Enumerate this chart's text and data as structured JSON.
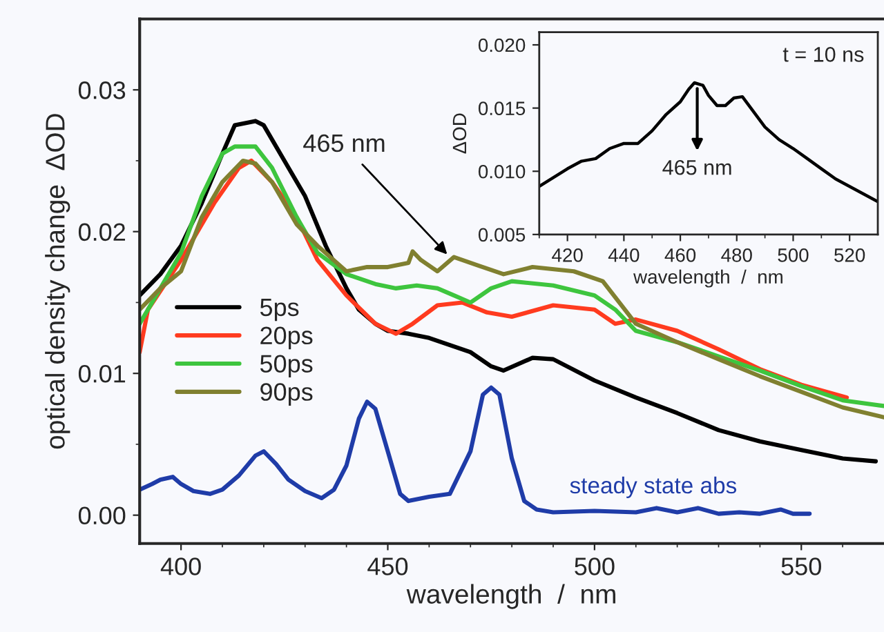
{
  "chart_data": [
    {
      "type": "line",
      "xlabel": "wavelength  /  nm",
      "ylabel": "optical density change  ΔOD",
      "xlim": [
        390,
        570
      ],
      "ylim": [
        -0.002,
        0.035
      ],
      "xticks": [
        400,
        {
          "value": 410,
          "label": null
        },
        {
          "value": 420,
          "label": null
        },
        {
          "value": 430,
          "label": null
        },
        {
          "value": 440,
          "label": null
        },
        450,
        {
          "value": 460,
          "label": null
        },
        {
          "value": 470,
          "label": null
        },
        {
          "value": 480,
          "label": null
        },
        {
          "value": 490,
          "label": null
        },
        500,
        {
          "value": 510,
          "label": null
        },
        {
          "value": 520,
          "label": null
        },
        {
          "value": 530,
          "label": null
        },
        {
          "value": 540,
          "label": null
        },
        550,
        {
          "value": 560,
          "label": null
        }
      ],
      "yticks": [
        {
          "value": 0,
          "label": "0.00"
        },
        {
          "value": 0.005,
          "label": null
        },
        {
          "value": 0.01,
          "label": "0.01"
        },
        {
          "value": 0.015,
          "label": null
        },
        {
          "value": 0.02,
          "label": "0.02"
        },
        {
          "value": 0.025,
          "label": null
        },
        {
          "value": 0.03,
          "label": "0.03"
        }
      ],
      "grid": false,
      "legend": "left",
      "line_style": "solid",
      "marker": "none",
      "series": [
        {
          "name": "5ps",
          "color": "#000000",
          "x": [
            390,
            395,
            400,
            405,
            410,
            413,
            418,
            420,
            425,
            430,
            435,
            440,
            443,
            447,
            450,
            455,
            460,
            465,
            470,
            475,
            478,
            485,
            490,
            500,
            510,
            520,
            530,
            540,
            550,
            560,
            568
          ],
          "values": [
            0.0155,
            0.017,
            0.019,
            0.022,
            0.0255,
            0.0275,
            0.0278,
            0.0275,
            0.025,
            0.0225,
            0.019,
            0.016,
            0.0145,
            0.0135,
            0.013,
            0.0128,
            0.0125,
            0.012,
            0.0115,
            0.0105,
            0.0102,
            0.0111,
            0.011,
            0.0095,
            0.0083,
            0.0072,
            0.006,
            0.0052,
            0.0046,
            0.004,
            0.0038
          ]
        },
        {
          "name": "20ps",
          "color": "#ff3b1f",
          "x": [
            390,
            392,
            400,
            408,
            414,
            417,
            422,
            428,
            433,
            440,
            447,
            452,
            456,
            462,
            468,
            474,
            480,
            490,
            500,
            505,
            510,
            520,
            530,
            540,
            550,
            561
          ],
          "values": [
            0.0115,
            0.0145,
            0.018,
            0.022,
            0.0245,
            0.025,
            0.0235,
            0.021,
            0.018,
            0.0155,
            0.0135,
            0.0128,
            0.0135,
            0.0148,
            0.015,
            0.0143,
            0.014,
            0.0148,
            0.0145,
            0.0135,
            0.0138,
            0.013,
            0.0117,
            0.0103,
            0.0092,
            0.0083
          ]
        },
        {
          "name": "50ps",
          "color": "#3ec53e",
          "x": [
            390,
            395,
            400,
            405,
            410,
            413,
            418,
            422,
            428,
            433,
            440,
            447,
            452,
            457,
            462,
            466,
            470,
            475,
            480,
            490,
            500,
            505,
            510,
            520,
            530,
            540,
            550,
            560,
            570
          ],
          "values": [
            0.0135,
            0.016,
            0.0185,
            0.0225,
            0.0255,
            0.026,
            0.026,
            0.0245,
            0.021,
            0.0185,
            0.017,
            0.0163,
            0.016,
            0.0162,
            0.016,
            0.0155,
            0.015,
            0.016,
            0.0165,
            0.0162,
            0.0155,
            0.0145,
            0.013,
            0.0122,
            0.0112,
            0.0102,
            0.0091,
            0.0081,
            0.0077
          ]
        },
        {
          "name": "90ps",
          "color": "#808030",
          "x": [
            390,
            395,
            400,
            405,
            410,
            415,
            418,
            422,
            428,
            433,
            440,
            445,
            450,
            455,
            456,
            458,
            462,
            466,
            472,
            478,
            485,
            495,
            502,
            510,
            520,
            530,
            540,
            550,
            560,
            570
          ],
          "values": [
            0.0145,
            0.016,
            0.0172,
            0.021,
            0.0235,
            0.025,
            0.0248,
            0.0235,
            0.0205,
            0.019,
            0.0172,
            0.0175,
            0.0175,
            0.0178,
            0.0186,
            0.018,
            0.0172,
            0.0182,
            0.0176,
            0.017,
            0.0175,
            0.0172,
            0.0165,
            0.0135,
            0.0122,
            0.011,
            0.0098,
            0.0087,
            0.0076,
            0.0069
          ]
        },
        {
          "color": "#1f3ca8",
          "x": [
            390,
            393,
            395,
            398,
            400,
            403,
            407,
            410,
            414,
            418,
            420,
            423,
            426,
            430,
            434,
            437,
            440,
            443,
            445,
            447,
            450,
            453,
            455,
            460,
            465,
            470,
            473,
            475,
            477,
            480,
            483,
            486,
            490,
            500,
            510,
            515,
            520,
            525,
            530,
            535,
            540,
            545,
            548,
            552
          ],
          "values": [
            0.0018,
            0.0022,
            0.0025,
            0.0027,
            0.0022,
            0.0017,
            0.0015,
            0.0018,
            0.0028,
            0.0042,
            0.0045,
            0.0036,
            0.0025,
            0.0017,
            0.0012,
            0.0018,
            0.0035,
            0.0068,
            0.008,
            0.0075,
            0.0045,
            0.0015,
            0.001,
            0.0013,
            0.0015,
            0.0045,
            0.0085,
            0.009,
            0.0085,
            0.004,
            0.001,
            0.0004,
            0.0002,
            0.0003,
            0.0002,
            0.0005,
            0.0002,
            0.0005,
            0.0001,
            0.0002,
            0.0001,
            0.0004,
            0.0001,
            0.0001
          ]
        }
      ],
      "annotations": [
        {
          "text": "465 nm",
          "x": 465,
          "y": 0.0182
        },
        "steady state abs"
      ]
    },
    {
      "type": "line",
      "xlabel": "wavelength  /  nm",
      "ylabel": "ΔOD",
      "xlim": [
        410,
        530
      ],
      "ylim": [
        0.005,
        0.021
      ],
      "xticks": [
        {
          "value": 410,
          "label": null
        },
        420,
        {
          "value": 430,
          "label": null
        },
        440,
        {
          "value": 450,
          "label": null
        },
        460,
        {
          "value": 470,
          "label": null
        },
        480,
        {
          "value": 490,
          "label": null
        },
        500,
        {
          "value": 510,
          "label": null
        },
        520
      ],
      "yticks": [
        {
          "value": 0.005,
          "label": "0.005"
        },
        {
          "value": 0.01,
          "label": "0.010"
        },
        {
          "value": 0.015,
          "label": "0.015"
        },
        {
          "value": 0.02,
          "label": "0.020"
        }
      ],
      "grid": false,
      "line_style": "solid",
      "marker": "none",
      "series": [
        {
          "color": "#000000",
          "x": [
            410,
            415,
            420,
            425,
            430,
            435,
            440,
            445,
            450,
            455,
            460,
            463,
            465,
            468,
            470,
            473,
            476,
            479,
            482,
            485,
            490,
            495,
            500,
            505,
            510,
            515,
            520,
            525,
            530
          ],
          "values": [
            0.0088,
            0.0095,
            0.0102,
            0.0108,
            0.011,
            0.0118,
            0.0122,
            0.0122,
            0.0132,
            0.0145,
            0.0155,
            0.0165,
            0.017,
            0.0168,
            0.016,
            0.0152,
            0.0152,
            0.0158,
            0.0159,
            0.015,
            0.0135,
            0.0125,
            0.0118,
            0.011,
            0.0102,
            0.0094,
            0.0088,
            0.0082,
            0.0076
          ]
        }
      ],
      "annotations": [
        {
          "text": "465 nm",
          "x": 466,
          "y": 0.017
        },
        "t = 10 ns"
      ]
    }
  ]
}
